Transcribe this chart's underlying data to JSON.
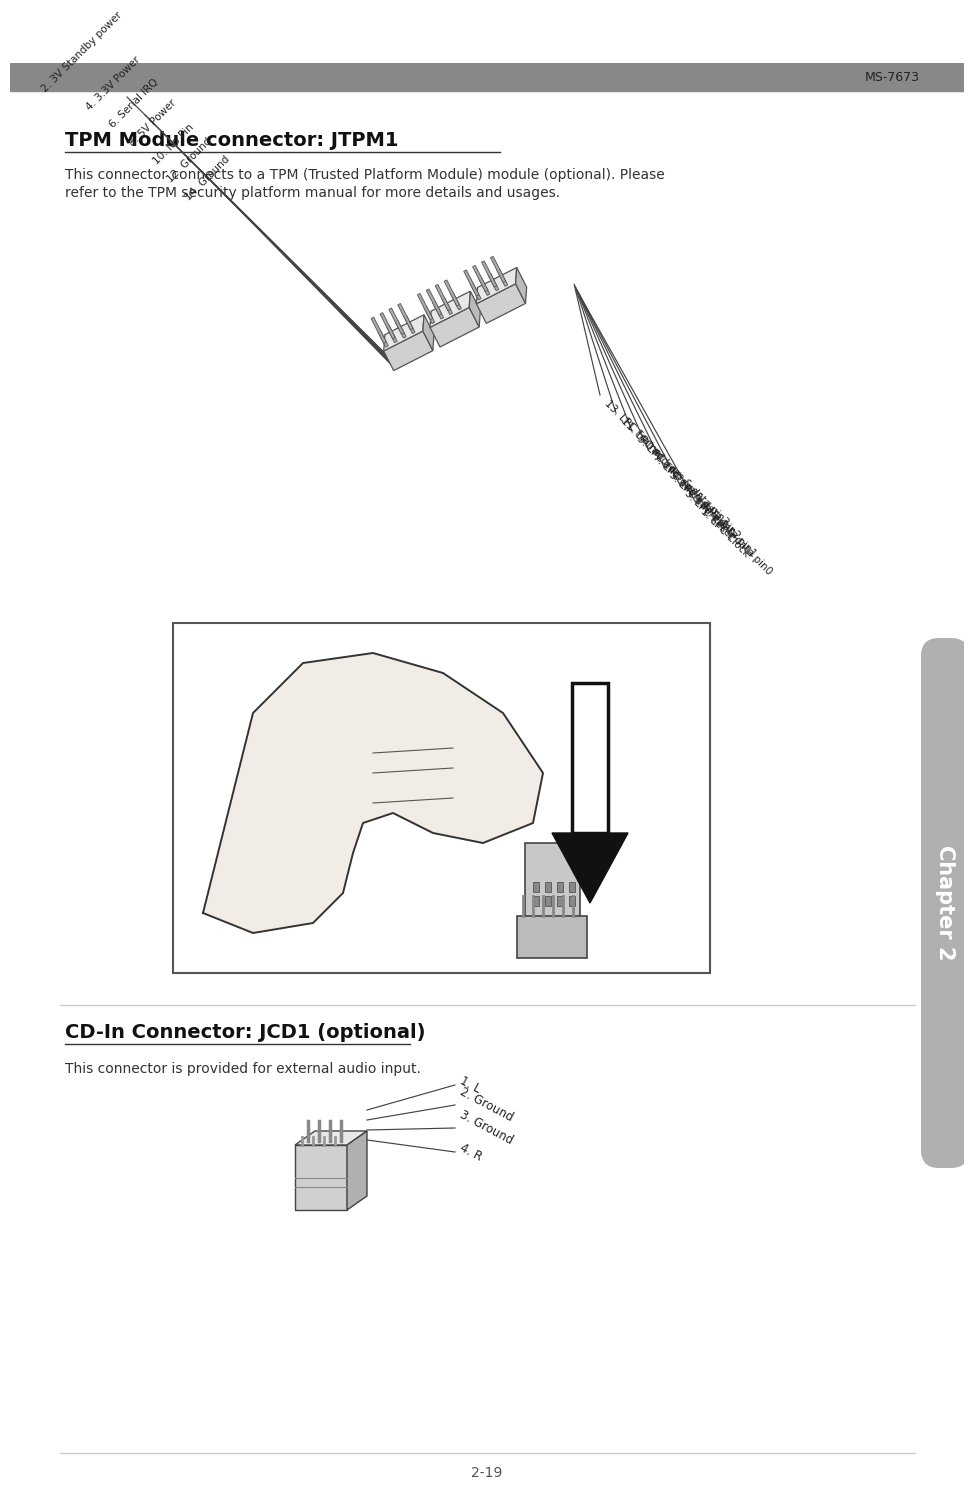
{
  "page_header_text": "MS-7673",
  "header_bar_color": "#888888",
  "tpm_title": "TPM Module connector: JTPM1",
  "tpm_desc1": "This connector connects to a TPM (Trusted Platform Module) module (optional). Please",
  "tpm_desc2": "refer to the TPM security platform manual for more details and usages.",
  "tpm_left_labels": [
    "14. Ground",
    "12. Ground",
    "10. No Pin",
    "8. 5V Power",
    "6. Serial IRQ",
    "4. 3.3V Power",
    "2. 3V Standby power"
  ],
  "tpm_right_labels": [
    "13. LPC Frame",
    "11. LPC address & data pin3",
    "9. LPC address & data pin2",
    "7. LPC address & data pin1",
    "5. LPC address & data pin0",
    "3. LPC Reset",
    "1. LPC Clock"
  ],
  "cd_title": "CD-In Connector: JCD1 (optional)",
  "cd_desc": "This connector is provided for external audio input.",
  "cd_labels": [
    "1. L",
    "2. Ground",
    "3. Ground",
    "4. R"
  ],
  "chapter_text": "Chapter 2",
  "page_number": "2-19",
  "sidebar_color": "#b0b0b0",
  "title_color": "#111111",
  "text_color": "#333333",
  "connector_body_color": "#d0d0d0",
  "connector_edge_color": "#555555",
  "background_color": "#ffffff"
}
